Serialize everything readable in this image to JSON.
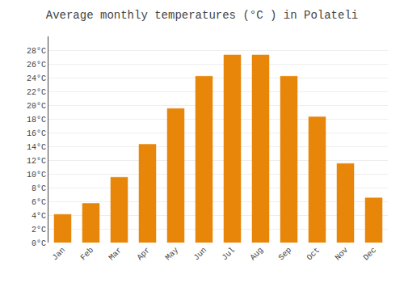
{
  "chart_data": {
    "type": "bar",
    "title": "Average monthly temperatures (°C ) in Polateli",
    "categories": [
      "Jan",
      "Feb",
      "Mar",
      "Apr",
      "May",
      "Jun",
      "Jul",
      "Aug",
      "Sep",
      "Oct",
      "Nov",
      "Dec"
    ],
    "values": [
      4.1,
      5.7,
      9.5,
      14.3,
      19.5,
      24.2,
      27.3,
      27.3,
      24.2,
      18.3,
      11.5,
      6.5
    ],
    "color": "#E8860A",
    "ylim": [
      0,
      30
    ],
    "yticks": [
      {
        "value": 0,
        "label": "0°C"
      },
      {
        "value": 2,
        "label": "2°C"
      },
      {
        "value": 4,
        "label": "4°C"
      },
      {
        "value": 6,
        "label": "6°C"
      },
      {
        "value": 8,
        "label": "8°C"
      },
      {
        "value": 10,
        "label": "10°C"
      },
      {
        "value": 12,
        "label": "12°C"
      },
      {
        "value": 14,
        "label": "14°C"
      },
      {
        "value": 16,
        "label": "16°C"
      },
      {
        "value": 18,
        "label": "18°C"
      },
      {
        "value": 20,
        "label": "20°C"
      },
      {
        "value": 22,
        "label": "22°C"
      },
      {
        "value": 24,
        "label": "24°C"
      },
      {
        "value": 26,
        "label": "26°C"
      },
      {
        "value": 28,
        "label": "28°C"
      }
    ],
    "grid": true
  }
}
